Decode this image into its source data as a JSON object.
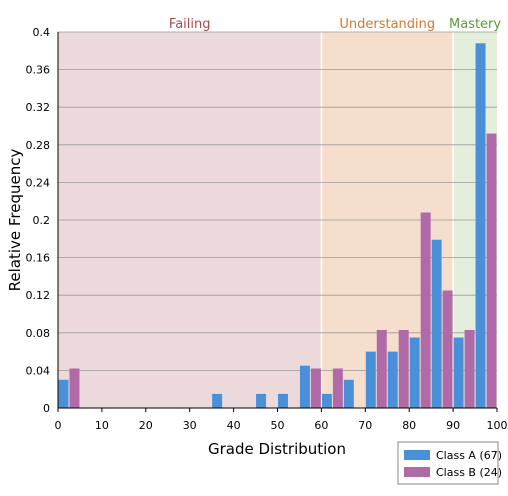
{
  "chart_data": {
    "type": "bar",
    "title": "",
    "xlabel": "Grade Distribution",
    "ylabel": "Relative Frequency",
    "xlim": [
      0,
      100
    ],
    "ylim": [
      0,
      0.4
    ],
    "x_ticks": [
      "0",
      "10",
      "20",
      "30",
      "40",
      "50",
      "60",
      "70",
      "80",
      "90",
      "100"
    ],
    "y_ticks": [
      "0",
      "0.04",
      "0.08",
      "0.12",
      "0.16",
      "0.2",
      "0.24",
      "0.28",
      "0.32",
      "0.36",
      "0.4"
    ],
    "grid": true,
    "legend_position": "bottom-right",
    "bin_width": 5,
    "bins": [
      0,
      5,
      10,
      15,
      20,
      25,
      30,
      35,
      40,
      45,
      50,
      55,
      60,
      65,
      70,
      75,
      80,
      85,
      90,
      95
    ],
    "series": [
      {
        "name": "Class A (67)",
        "color": "#4a90d9",
        "values": [
          0.03,
          0,
          0,
          0,
          0,
          0,
          0,
          0.015,
          0,
          0.015,
          0.015,
          0.045,
          0.015,
          0.03,
          0.06,
          0.06,
          0.075,
          0.179,
          0.075,
          0.388
        ]
      },
      {
        "name": "Class B (24)",
        "color": "#b06aa8",
        "values": [
          0.042,
          0,
          0,
          0,
          0,
          0,
          0,
          0,
          0,
          0,
          0,
          0.042,
          0.042,
          0,
          0.083,
          0.083,
          0.208,
          0.125,
          0.083,
          0.292
        ]
      }
    ],
    "bands": [
      {
        "label": "Failing",
        "from": 0,
        "to": 60,
        "fill": "#ecd9d9",
        "text_color": "#a84a4a"
      },
      {
        "label": "Understanding",
        "from": 60,
        "to": 90,
        "fill": "#f5dfcc",
        "text_color": "#d0782e"
      },
      {
        "label": "Mastery",
        "from": 90,
        "to": 100,
        "fill": "#e3eedb",
        "text_color": "#5a9a3a"
      }
    ]
  }
}
